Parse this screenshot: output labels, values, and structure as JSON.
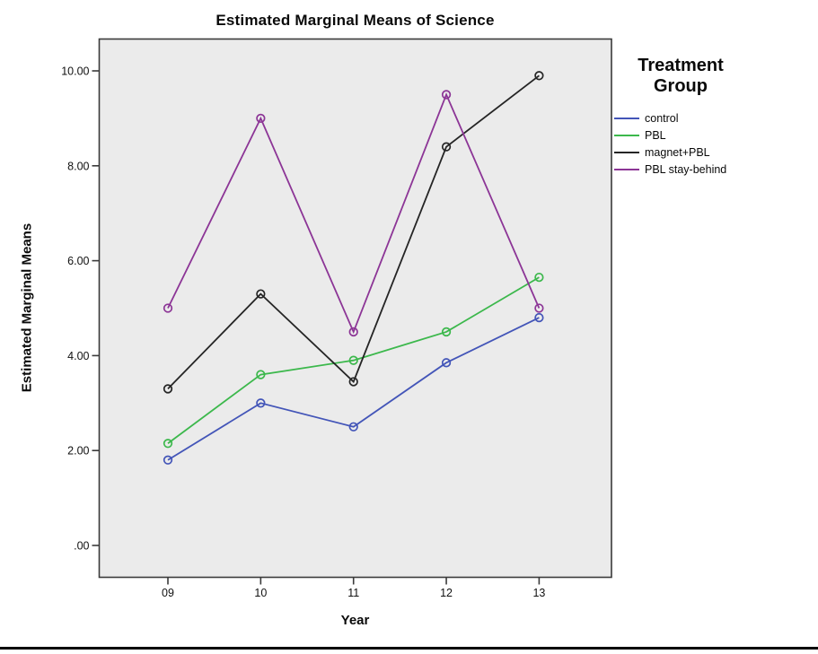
{
  "chart_data": {
    "type": "line",
    "title": "Estimated Marginal Means of Science",
    "xlabel": "Year",
    "ylabel": "Estimated Marginal Means",
    "categories": [
      "09",
      "10",
      "11",
      "12",
      "13"
    ],
    "y_tick_labels": [
      ".00",
      "2.00",
      "4.00",
      "6.00",
      "8.00",
      "10.00"
    ],
    "y_tick_values": [
      0,
      2,
      4,
      6,
      8,
      10
    ],
    "ylim": [
      -0.66,
      10.68
    ],
    "grid": false,
    "plot_bg_color": "#ebebeb",
    "frame_color": "#3a3a3a",
    "marker": "open-circle",
    "legend": {
      "title": "Treatment Group",
      "position": "right"
    },
    "series": [
      {
        "name": "control",
        "color": "#4355b8",
        "values": [
          1.8,
          3.0,
          2.5,
          3.85,
          4.8
        ]
      },
      {
        "name": "PBL",
        "color": "#3cb84c",
        "values": [
          2.15,
          3.6,
          3.9,
          4.5,
          5.65
        ]
      },
      {
        "name": "magnet+PBL",
        "color": "#252525",
        "values": [
          3.3,
          5.3,
          3.45,
          8.4,
          9.9
        ]
      },
      {
        "name": "PBL stay-behind",
        "color": "#8c3596",
        "values": [
          5.0,
          9.0,
          4.5,
          9.5,
          5.0
        ]
      }
    ]
  },
  "page": {
    "bottom_rule_color": "#000000"
  }
}
